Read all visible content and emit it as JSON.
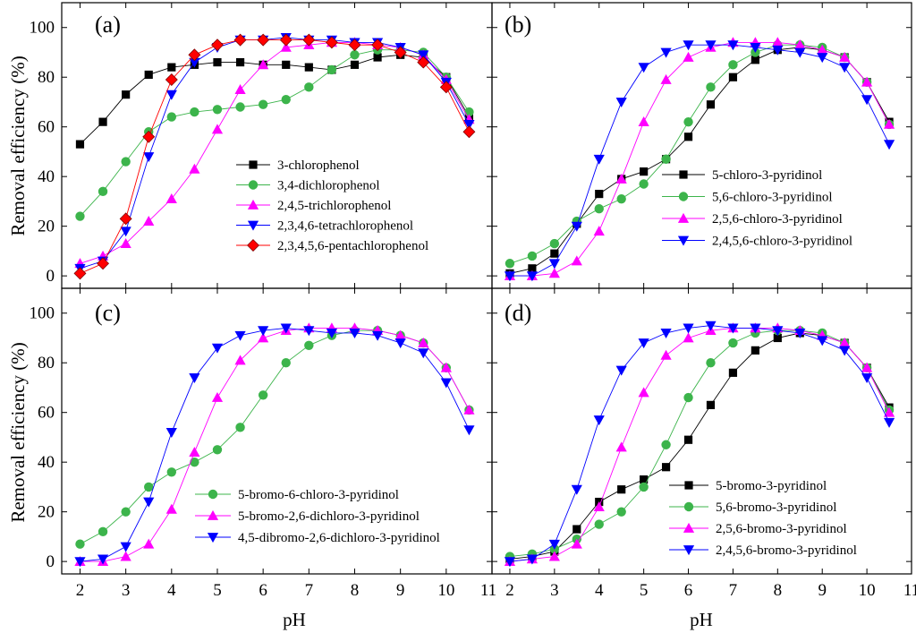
{
  "figure": {
    "shared_ylabel": "Removal efficiency (%)",
    "shared_xlabel": "pH",
    "x_ticks": [
      2,
      3,
      4,
      5,
      6,
      7,
      8,
      9,
      10,
      11
    ],
    "y_ticks": [
      0,
      20,
      40,
      60,
      80,
      100
    ]
  },
  "chart_data": [
    {
      "panel": "(a)",
      "type": "line",
      "xlabel": "pH",
      "ylabel": "Removal efficiency (%)",
      "xlim": [
        1.6,
        11
      ],
      "ylim": [
        -5,
        110
      ],
      "x": [
        2,
        2.5,
        3,
        3.5,
        4,
        4.5,
        5,
        5.5,
        6,
        6.5,
        7,
        7.5,
        8,
        8.5,
        9,
        9.5,
        10,
        10.5
      ],
      "series": [
        {
          "name": "3-chlorophenol",
          "color": "#000000",
          "marker": "square",
          "values": [
            53,
            62,
            73,
            81,
            84,
            85,
            86,
            86,
            85,
            85,
            84,
            83,
            85,
            88,
            89,
            88,
            80,
            64
          ]
        },
        {
          "name": "3,4-dichlorophenol",
          "color": "#3cb44b",
          "marker": "circle",
          "values": [
            24,
            34,
            46,
            58,
            64,
            66,
            67,
            68,
            69,
            71,
            76,
            83,
            89,
            91,
            91,
            90,
            80,
            66
          ]
        },
        {
          "name": "2,4,5-trichlorophenol",
          "color": "#ff00ff",
          "marker": "triangle-up",
          "values": [
            5,
            8,
            13,
            22,
            31,
            43,
            59,
            75,
            85,
            92,
            93,
            94,
            94,
            93,
            92,
            89,
            79,
            63
          ]
        },
        {
          "name": "2,3,4,6-tetrachlorophenol",
          "color": "#0000ff",
          "marker": "triangle-down",
          "values": [
            3,
            6,
            18,
            48,
            73,
            86,
            92,
            95,
            95,
            96,
            95,
            95,
            94,
            94,
            92,
            89,
            78,
            61
          ]
        },
        {
          "name": "2,3,4,5,6-pentachlorophenol",
          "color": "#ff0000",
          "marker": "diamond",
          "values": [
            1,
            5,
            23,
            56,
            79,
            89,
            93,
            95,
            95,
            95,
            95,
            94,
            93,
            93,
            90,
            86,
            76,
            58
          ]
        }
      ]
    },
    {
      "panel": "(b)",
      "type": "line",
      "xlabel": "pH",
      "ylabel": "Removal efficiency (%)",
      "xlim": [
        1.6,
        11
      ],
      "ylim": [
        -5,
        110
      ],
      "x": [
        2,
        2.5,
        3,
        3.5,
        4,
        4.5,
        5,
        5.5,
        6,
        6.5,
        7,
        7.5,
        8,
        8.5,
        9,
        9.5,
        10,
        10.5
      ],
      "series": [
        {
          "name": "5-chloro-3-pyridinol",
          "color": "#000000",
          "marker": "square",
          "values": [
            1,
            3,
            9,
            21,
            33,
            39,
            42,
            47,
            56,
            69,
            80,
            87,
            91,
            92,
            91,
            88,
            78,
            62
          ]
        },
        {
          "name": "5,6-chloro-3-pyridinol",
          "color": "#3cb44b",
          "marker": "circle",
          "values": [
            5,
            8,
            13,
            22,
            27,
            31,
            37,
            47,
            62,
            76,
            85,
            90,
            93,
            93,
            92,
            88,
            78,
            61
          ]
        },
        {
          "name": "2,5,6-chloro-3-pyridinol",
          "color": "#ff00ff",
          "marker": "triangle-up",
          "values": [
            0,
            0,
            1,
            6,
            18,
            39,
            62,
            79,
            88,
            92,
            94,
            94,
            94,
            93,
            91,
            88,
            78,
            61
          ]
        },
        {
          "name": "2,4,5,6-chloro-3-pyridinol",
          "color": "#0000ff",
          "marker": "triangle-down",
          "values": [
            0,
            0,
            5,
            20,
            47,
            70,
            84,
            90,
            93,
            93,
            93,
            92,
            91,
            90,
            88,
            84,
            71,
            53
          ]
        }
      ]
    },
    {
      "panel": "(c)",
      "type": "line",
      "xlabel": "pH",
      "ylabel": "Removal efficiency (%)",
      "xlim": [
        1.6,
        11
      ],
      "ylim": [
        -5,
        110
      ],
      "x": [
        2,
        2.5,
        3,
        3.5,
        4,
        4.5,
        5,
        5.5,
        6,
        6.5,
        7,
        7.5,
        8,
        8.5,
        9,
        9.5,
        10,
        10.5
      ],
      "series": [
        {
          "name": "5-bromo-6-chloro-3-pyridinol",
          "color": "#3cb44b",
          "marker": "circle",
          "values": [
            7,
            12,
            20,
            30,
            36,
            40,
            45,
            54,
            67,
            80,
            87,
            91,
            93,
            93,
            91,
            88,
            78,
            61
          ]
        },
        {
          "name": "5-bromo-2,6-dichloro-3-pyridinol",
          "color": "#ff00ff",
          "marker": "triangle-up",
          "values": [
            0,
            0,
            2,
            7,
            21,
            44,
            66,
            81,
            90,
            93,
            94,
            94,
            94,
            93,
            91,
            88,
            78,
            61
          ]
        },
        {
          "name": "4,5-dibromo-2,6-dichloro-3-pyridinol",
          "color": "#0000ff",
          "marker": "triangle-down",
          "values": [
            0,
            1,
            6,
            24,
            52,
            74,
            86,
            91,
            93,
            94,
            93,
            92,
            92,
            91,
            88,
            84,
            72,
            53
          ]
        }
      ]
    },
    {
      "panel": "(d)",
      "type": "line",
      "xlabel": "pH",
      "ylabel": "Removal efficiency (%)",
      "xlim": [
        1.6,
        11
      ],
      "ylim": [
        -5,
        110
      ],
      "x": [
        2,
        2.5,
        3,
        3.5,
        4,
        4.5,
        5,
        5.5,
        6,
        6.5,
        7,
        7.5,
        8,
        8.5,
        9,
        9.5,
        10,
        10.5
      ],
      "series": [
        {
          "name": "5-bromo-3-pyridinol",
          "color": "#000000",
          "marker": "square",
          "values": [
            1,
            2,
            4,
            13,
            24,
            29,
            33,
            38,
            49,
            63,
            76,
            85,
            90,
            92,
            91,
            88,
            78,
            62
          ]
        },
        {
          "name": "5,6-bromo-3-pyridinol",
          "color": "#3cb44b",
          "marker": "circle",
          "values": [
            2,
            3,
            5,
            9,
            15,
            20,
            30,
            47,
            66,
            80,
            88,
            92,
            93,
            93,
            92,
            88,
            78,
            61
          ]
        },
        {
          "name": "2,5,6-bromo-3-pyridinol",
          "color": "#ff00ff",
          "marker": "triangle-up",
          "values": [
            0,
            1,
            2,
            7,
            22,
            46,
            68,
            83,
            90,
            93,
            94,
            94,
            94,
            93,
            91,
            88,
            78,
            60
          ]
        },
        {
          "name": "2,4,5,6-bromo-3-pyridinol",
          "color": "#0000ff",
          "marker": "triangle-down",
          "values": [
            0,
            1,
            7,
            29,
            57,
            77,
            88,
            92,
            94,
            95,
            94,
            94,
            93,
            92,
            89,
            85,
            74,
            56
          ]
        }
      ]
    }
  ]
}
